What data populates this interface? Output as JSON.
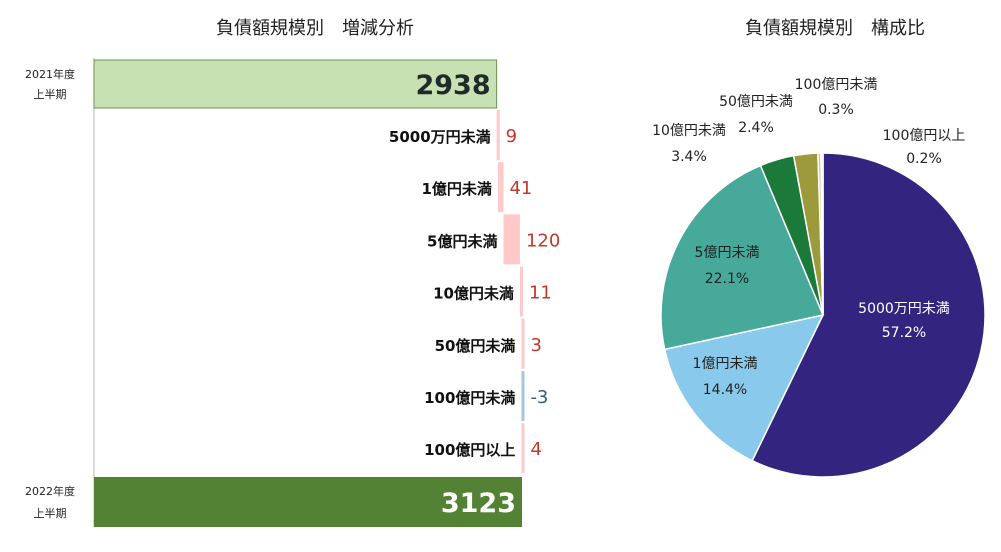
{
  "chart_data": [
    {
      "type": "bar",
      "subtype": "waterfall",
      "title": "負債額規模別　増減分析",
      "start": {
        "label_line1": "2021年度",
        "label_line2": "上半期",
        "value": 2938,
        "color": "#c7e1b3"
      },
      "end": {
        "label_line1": "2022年度",
        "label_line2": "上半期",
        "value": 3123,
        "color": "#548235"
      },
      "steps": [
        {
          "label": "5000万円未満",
          "value": 9
        },
        {
          "label": "1億円未満",
          "value": 41
        },
        {
          "label": "5億円未満",
          "value": 120
        },
        {
          "label": "10億円未満",
          "value": 11
        },
        {
          "label": "50億円未満",
          "value": 3
        },
        {
          "label": "100億円未満",
          "value": -3
        },
        {
          "label": "100億円以上",
          "value": 4
        }
      ],
      "positive_color": "#ffc9c9",
      "negative_color": "#a9c6dc",
      "positive_label_color": "#c0392b",
      "negative_label_color": "#2e5a87",
      "grid": false,
      "legend": "none"
    },
    {
      "type": "pie",
      "title": "負債額規模別　構成比",
      "slices": [
        {
          "label": "5000万円未満",
          "percent": 57.2,
          "value_text": "57.2%",
          "color": "#32247f"
        },
        {
          "label": "1億円未満",
          "percent": 14.4,
          "value_text": "14.4%",
          "color": "#89c9ec"
        },
        {
          "label": "5億円未満",
          "percent": 22.1,
          "value_text": "22.1%",
          "color": "#47a99a"
        },
        {
          "label": "10億円未満",
          "percent": 3.4,
          "value_text": "3.4%",
          "color": "#1b7a3a"
        },
        {
          "label": "50億円未満",
          "percent": 2.4,
          "value_text": "2.4%",
          "color": "#9c9a3a"
        },
        {
          "label": "100億円未満",
          "percent": 0.3,
          "value_text": "0.3%",
          "color": "#c9c98a"
        },
        {
          "label": "100億円以上",
          "percent": 0.2,
          "value_text": "0.2%",
          "color": "#ebe3c6"
        }
      ],
      "legend": "none"
    }
  ]
}
